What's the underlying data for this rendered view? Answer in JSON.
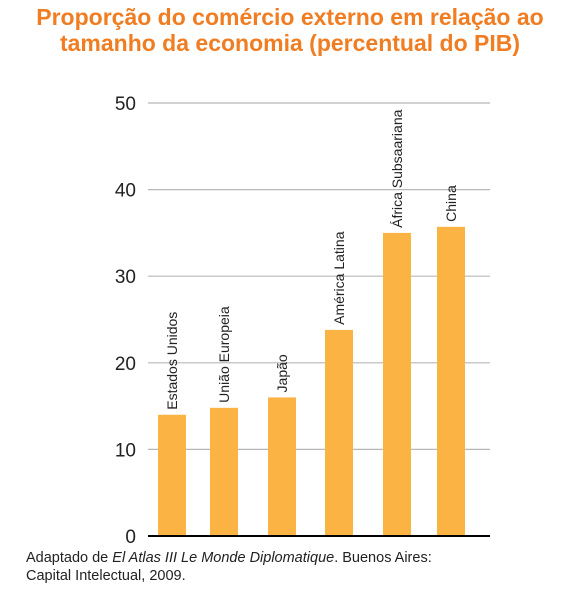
{
  "title_lines": [
    "Proporção do comércio externo em relação ao",
    "tamanho da economia (percentual do PIB)"
  ],
  "colors": {
    "title": "#f07d22",
    "bar": "#fbb343",
    "grid": "#b8b8b8",
    "axis": "#000000",
    "text": "#222222"
  },
  "chart_data": {
    "type": "bar",
    "title": "Proporção do comércio externo em relação ao tamanho da economia (percentual do PIB)",
    "categories": [
      "Estados Unidos",
      "União Europeia",
      "Japão",
      "América Latina",
      "África Subsaariana",
      "China"
    ],
    "values": [
      14,
      14.8,
      16,
      23.8,
      35,
      35.7
    ],
    "category_label_orientation": "vertical above bars",
    "ylim": [
      0,
      50
    ],
    "yticks": [
      "0",
      "10",
      "20",
      "30",
      "40",
      "50"
    ],
    "grid": true
  },
  "source": {
    "prefix": "Adaptado de ",
    "work": "El Atlas III Le Monde Diplomatique",
    "line1_suffix": ".  Buenos Aires:",
    "line2": "Capital Intelectual, 2009."
  }
}
